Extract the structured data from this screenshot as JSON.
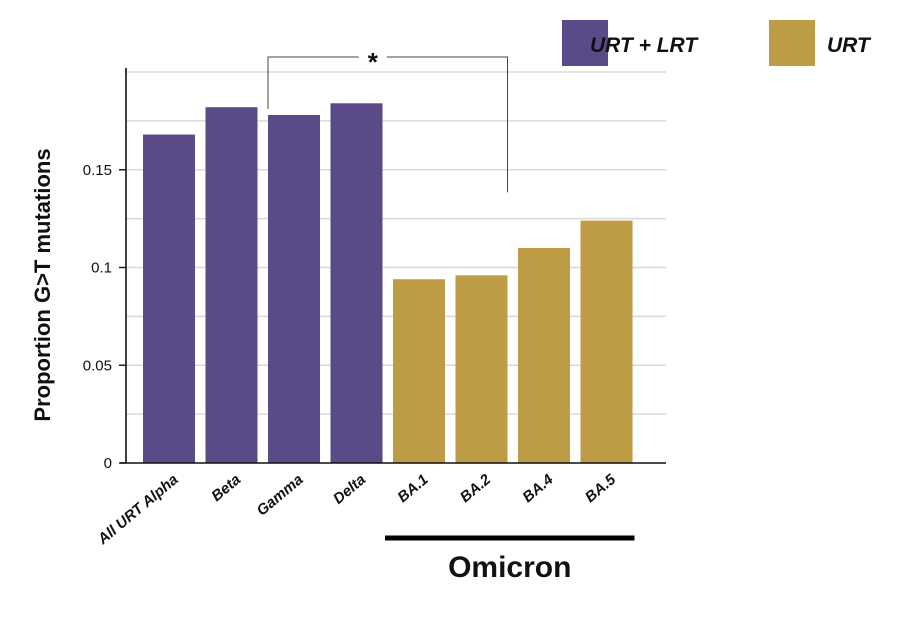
{
  "chart_data": {
    "type": "bar",
    "ylabel": "Proportion G>T mutations",
    "ylim": [
      0,
      0.2
    ],
    "yticks": [
      {
        "value": 0,
        "label": "0"
      },
      {
        "value": 0.05,
        "label": "0.05"
      },
      {
        "value": 0.1,
        "label": "0.1"
      },
      {
        "value": 0.15,
        "label": "0.15"
      }
    ],
    "grid": true,
    "categories": [
      "All URT Alpha",
      "Beta",
      "Gamma",
      "Delta",
      "BA.1",
      "BA.2",
      "BA.4",
      "BA.5"
    ],
    "values": [
      0.168,
      0.182,
      0.178,
      0.184,
      0.094,
      0.096,
      0.11,
      0.124
    ],
    "bar_group": [
      "URT + LRT",
      "URT + LRT",
      "URT + LRT",
      "URT + LRT",
      "URT",
      "URT",
      "URT",
      "URT"
    ],
    "legend": {
      "placement": "top-right",
      "entries": [
        {
          "label": "URT + LRT",
          "color": "#5a4a87"
        },
        {
          "label": "URT",
          "color": "#be9b45"
        }
      ]
    },
    "annotations": {
      "group_bracket": {
        "label": "Omicron",
        "from_category": "BA.1",
        "to_category": "BA.5"
      },
      "significance": {
        "label": "*",
        "from_category": "Gamma",
        "to_category": "BA.2"
      }
    }
  }
}
